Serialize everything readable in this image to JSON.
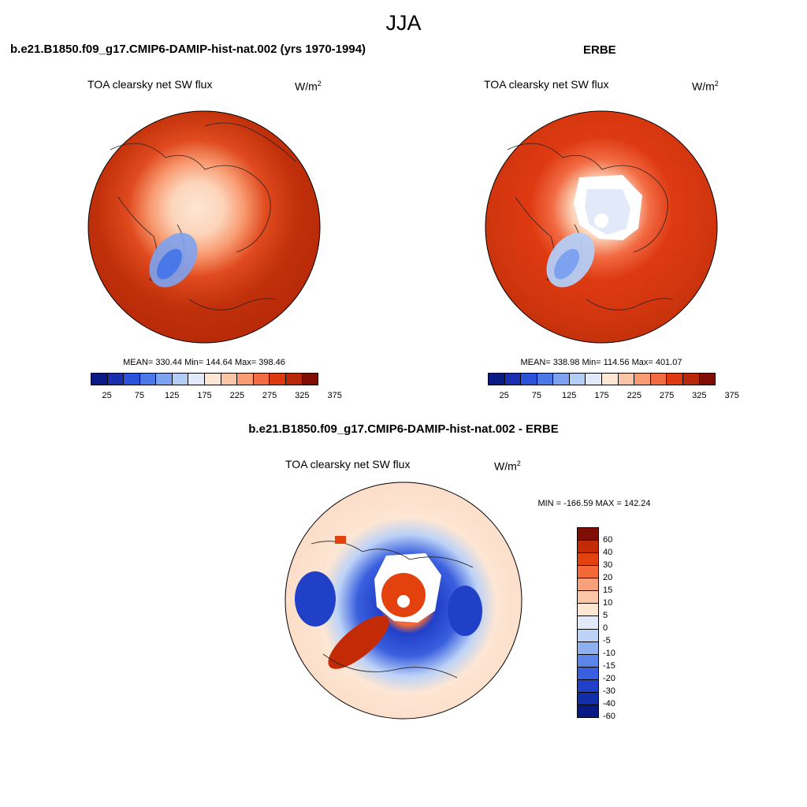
{
  "figure": {
    "season": "JJA",
    "model_title": "b.e21.B1850.f09_g17.CMIP6-DAMIP-hist-nat.002 (yrs 1970-1994)",
    "obs_title": "ERBE",
    "diff_title": "b.e21.B1850.f09_g17.CMIP6-DAMIP-hist-nat.002 - ERBE"
  },
  "panels": {
    "model": {
      "variable": "TOA clearsky net SW flux",
      "units_base": "W/m",
      "units_exp": "2",
      "stats": "MEAN= 330.44  Min= 144.64  Max= 398.46"
    },
    "obs": {
      "variable": "TOA clearsky net SW flux",
      "units_base": "W/m",
      "units_exp": "2",
      "stats": "MEAN= 338.98  Min= 114.56  Max= 401.07"
    },
    "diff": {
      "variable": "TOA clearsky net SW flux",
      "units_base": "W/m",
      "units_exp": "2",
      "stats": "MIN = -166.59 MAX = 142.24"
    }
  },
  "colorbar_abs": {
    "colors": [
      "#0a1a85",
      "#1a2fb0",
      "#2b52d9",
      "#4a78e8",
      "#7da3f0",
      "#b4cdf5",
      "#e2eafa",
      "#fde6d4",
      "#fcc6a6",
      "#f99c73",
      "#f26b43",
      "#de3a12",
      "#b82709",
      "#7f0d03"
    ],
    "labels": [
      "25",
      "75",
      "125",
      "175",
      "225",
      "275",
      "325",
      "375"
    ]
  },
  "colorbar_diff": {
    "colors": [
      "#7f0d03",
      "#c22b06",
      "#e3420f",
      "#f36a38",
      "#f7a07a",
      "#fac6a8",
      "#fde6d4",
      "#e2eafa",
      "#bcd2f7",
      "#8eb0f0",
      "#5b85e8",
      "#3a5fde",
      "#2140c8",
      "#112ea8",
      "#0a1a85"
    ],
    "labels": [
      "60",
      "40",
      "30",
      "20",
      "15",
      "10",
      "5",
      "0",
      "-5",
      "-10",
      "-15",
      "-20",
      "-30",
      "-40",
      "-60"
    ]
  }
}
